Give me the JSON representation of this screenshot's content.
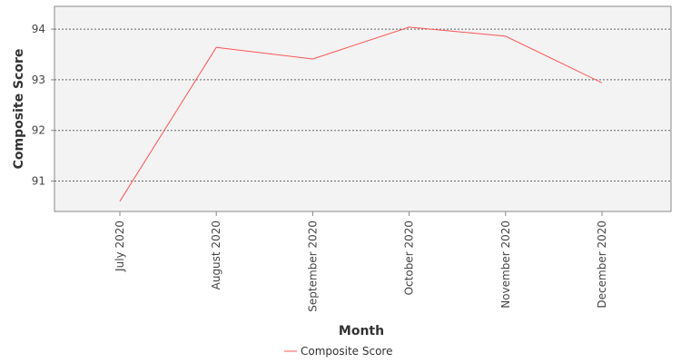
{
  "chart_data": {
    "type": "line",
    "categories": [
      "July 2020",
      "August 2020",
      "September 2020",
      "October 2020",
      "November 2020",
      "December 2020"
    ],
    "series": [
      {
        "name": "Composite Score",
        "values": [
          90.6,
          93.64,
          93.41,
          94.04,
          93.86,
          92.94
        ],
        "color": "#ff5555"
      }
    ],
    "xlabel": "Month",
    "ylabel": "Composite Score",
    "yticks": [
      91,
      92,
      93,
      94
    ],
    "ylim": [
      90.4,
      94.45
    ],
    "grid": true,
    "legend_position": "bottom"
  }
}
